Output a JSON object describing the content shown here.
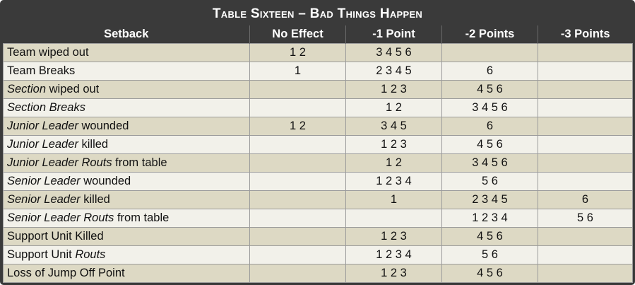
{
  "title": "Table Sixteen – Bad Things Happen",
  "columns": [
    "Setback",
    "No Effect",
    "-1 Point",
    "-2 Points",
    "-3 Points"
  ],
  "rows": [
    {
      "parts": [
        {
          "t": "Team wiped out",
          "i": false
        }
      ],
      "no_effect": "1 2",
      "minus1": "3 4 5 6",
      "minus2": "",
      "minus3": ""
    },
    {
      "parts": [
        {
          "t": "Team Breaks",
          "i": false
        }
      ],
      "no_effect": "1",
      "minus1": "2 3 4 5",
      "minus2": "6",
      "minus3": ""
    },
    {
      "parts": [
        {
          "t": "Section",
          "i": true
        },
        {
          "t": " wiped out",
          "i": false
        }
      ],
      "no_effect": "",
      "minus1": "1 2 3",
      "minus2": "4 5 6",
      "minus3": ""
    },
    {
      "parts": [
        {
          "t": "Section Breaks",
          "i": true
        }
      ],
      "no_effect": "",
      "minus1": "1 2",
      "minus2": "3 4 5 6",
      "minus3": ""
    },
    {
      "parts": [
        {
          "t": "Junior Leader",
          "i": true
        },
        {
          "t": " wounded",
          "i": false
        }
      ],
      "no_effect": "1 2",
      "minus1": "3 4 5",
      "minus2": "6",
      "minus3": ""
    },
    {
      "parts": [
        {
          "t": "Junior Leader",
          "i": true
        },
        {
          "t": " killed",
          "i": false
        }
      ],
      "no_effect": "",
      "minus1": "1 2 3",
      "minus2": "4 5 6",
      "minus3": ""
    },
    {
      "parts": [
        {
          "t": "Junior Leader Routs",
          "i": true
        },
        {
          "t": " from table",
          "i": false
        }
      ],
      "no_effect": "",
      "minus1": "1 2",
      "minus2": "3 4 5 6",
      "minus3": ""
    },
    {
      "parts": [
        {
          "t": "Senior Leader",
          "i": true
        },
        {
          "t": " wounded",
          "i": false
        }
      ],
      "no_effect": "",
      "minus1": "1 2 3 4",
      "minus2": "5 6",
      "minus3": ""
    },
    {
      "parts": [
        {
          "t": "Senior Leader",
          "i": true
        },
        {
          "t": " killed",
          "i": false
        }
      ],
      "no_effect": "",
      "minus1": "1",
      "minus2": "2 3 4 5",
      "minus3": "6"
    },
    {
      "parts": [
        {
          "t": "Senior Leader Routs",
          "i": true
        },
        {
          "t": " from table",
          "i": false
        }
      ],
      "no_effect": "",
      "minus1": "",
      "minus2": "1 2 3 4",
      "minus3": "5 6"
    },
    {
      "parts": [
        {
          "t": "Support Unit Killed",
          "i": false
        }
      ],
      "no_effect": "",
      "minus1": "1 2 3",
      "minus2": "4 5 6",
      "minus3": ""
    },
    {
      "parts": [
        {
          "t": "Support Unit ",
          "i": false
        },
        {
          "t": "Routs",
          "i": true
        }
      ],
      "no_effect": "",
      "minus1": "1 2 3 4",
      "minus2": "5 6",
      "minus3": ""
    },
    {
      "parts": [
        {
          "t": "Loss of Jump Off Point",
          "i": false
        }
      ],
      "no_effect": "",
      "minus1": "1 2 3",
      "minus2": "4 5 6",
      "minus3": ""
    }
  ],
  "colors": {
    "header_bg": "#3a3a3a",
    "row_dark": "#ddd9c4",
    "row_light": "#f2f1ea",
    "grid": "#9b9b9b"
  }
}
